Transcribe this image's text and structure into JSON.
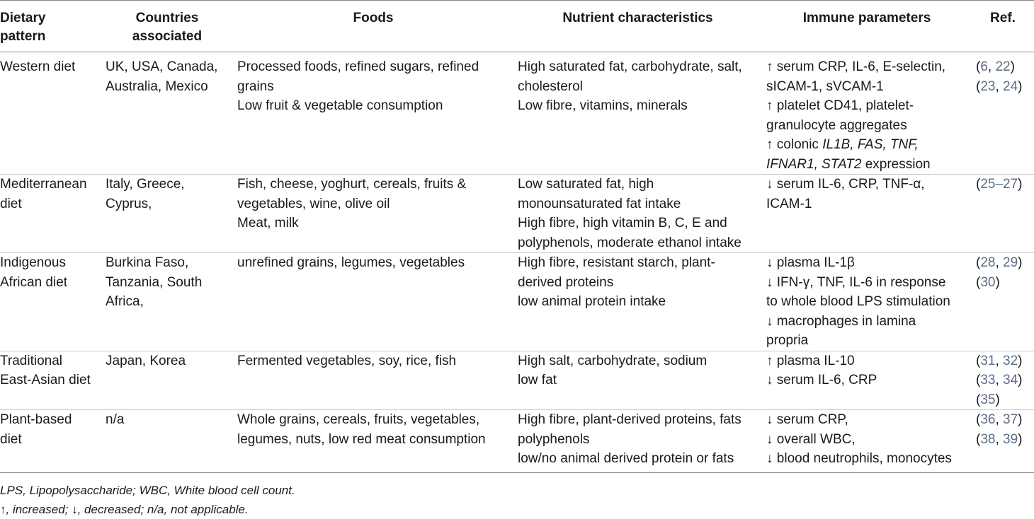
{
  "headers": {
    "pattern": [
      "Dietary",
      "pattern"
    ],
    "countries": [
      "Countries",
      "associated"
    ],
    "foods": "Foods",
    "nutrients": "Nutrient characteristics",
    "immune": "Immune parameters",
    "ref": "Ref."
  },
  "rows": [
    {
      "pattern": [
        "Western diet"
      ],
      "countries": [
        "UK, USA, Canada,",
        "Australia, Mexico"
      ],
      "foods": [
        "Processed foods, refined sugars, refined",
        "grains",
        "Low fruit & vegetable consumption"
      ],
      "nutrients": [
        "High saturated fat, carbohydrate, salt,",
        "cholesterol",
        "Low fibre, vitamins, minerals"
      ],
      "immune": [
        "↑ serum CRP, IL-6, E-selectin,",
        "sICAM-1, sVCAM-1",
        "↑ platelet CD41, platelet-",
        "granulocyte aggregates",
        "↑ colonic ",
        "IL1B, FAS, TNF,",
        "IFNAR1, STAT2",
        " expression"
      ],
      "ref": {
        "l1": [
          "(",
          "6",
          ", ",
          "22",
          ")"
        ],
        "l2": [
          "(",
          "23",
          ", ",
          "24",
          ")"
        ]
      }
    },
    {
      "pattern": [
        "Mediterranean",
        "diet"
      ],
      "countries": [
        "Italy, Greece,",
        "Cyprus,"
      ],
      "foods": [
        "Fish, cheese, yoghurt, cereals, fruits &",
        "vegetables, wine, olive oil",
        "Meat, milk"
      ],
      "nutrients": [
        "Low saturated fat, high",
        "monounsaturated fat intake",
        "High fibre, high vitamin B, C, E and",
        "polyphenols, moderate ethanol intake"
      ],
      "immune": [
        "↓ serum IL-6, CRP, TNF-α,",
        "ICAM-1"
      ],
      "ref": {
        "l1": [
          "(",
          "25–27",
          ")"
        ]
      }
    },
    {
      "pattern": [
        "Indigenous",
        "African diet"
      ],
      "countries": [
        "Burkina Faso,",
        "Tanzania, South",
        "Africa,"
      ],
      "foods": [
        "unrefined grains, legumes, vegetables"
      ],
      "nutrients": [
        "High fibre, resistant starch, plant-",
        "derived proteins",
        "low animal protein intake"
      ],
      "immune": [
        "↓ plasma IL-1β",
        "↓ IFN-γ, TNF, IL-6 in response",
        "to whole blood LPS stimulation",
        "↓ macrophages in lamina",
        "propria"
      ],
      "ref": {
        "l1": [
          "(",
          "28",
          ", ",
          "29",
          ")"
        ],
        "l2": [
          "(",
          "30",
          ")"
        ]
      }
    },
    {
      "pattern": [
        "Traditional",
        "East-Asian diet"
      ],
      "countries": [
        "Japan, Korea"
      ],
      "foods": [
        "Fermented vegetables, soy, rice, fish"
      ],
      "nutrients": [
        "High salt, carbohydrate, sodium",
        "low fat"
      ],
      "immune": [
        "↑ plasma IL-10",
        "↓ serum IL-6, CRP"
      ],
      "ref": {
        "l1": [
          "(",
          "31",
          ", ",
          "32",
          ")"
        ],
        "l2": [
          "(",
          "33",
          ", ",
          "34",
          ")"
        ],
        "l3": [
          "(",
          "35",
          ")"
        ]
      }
    },
    {
      "pattern": [
        "Plant-based",
        "diet"
      ],
      "countries": [
        "n/a"
      ],
      "foods": [
        "Whole grains, cereals, fruits, vegetables,",
        "legumes, nuts, low red meat consumption"
      ],
      "nutrients": [
        "High fibre, plant-derived proteins, fats",
        "polyphenols",
        "low/no animal derived protein or fats"
      ],
      "immune": [
        "↓ serum CRP,",
        "↓ overall WBC,",
        "↓ blood neutrophils, monocytes"
      ],
      "ref": {
        "l1": [
          "(",
          "36",
          ", ",
          "37",
          ")"
        ],
        "l2": [
          "(",
          "38",
          ", ",
          "39",
          ")"
        ]
      }
    }
  ],
  "footnotes": [
    "LPS, Lipopolysaccharide; WBC, White blood cell count.",
    "↑, increased; ↓, decreased; n/a, not applicable."
  ]
}
